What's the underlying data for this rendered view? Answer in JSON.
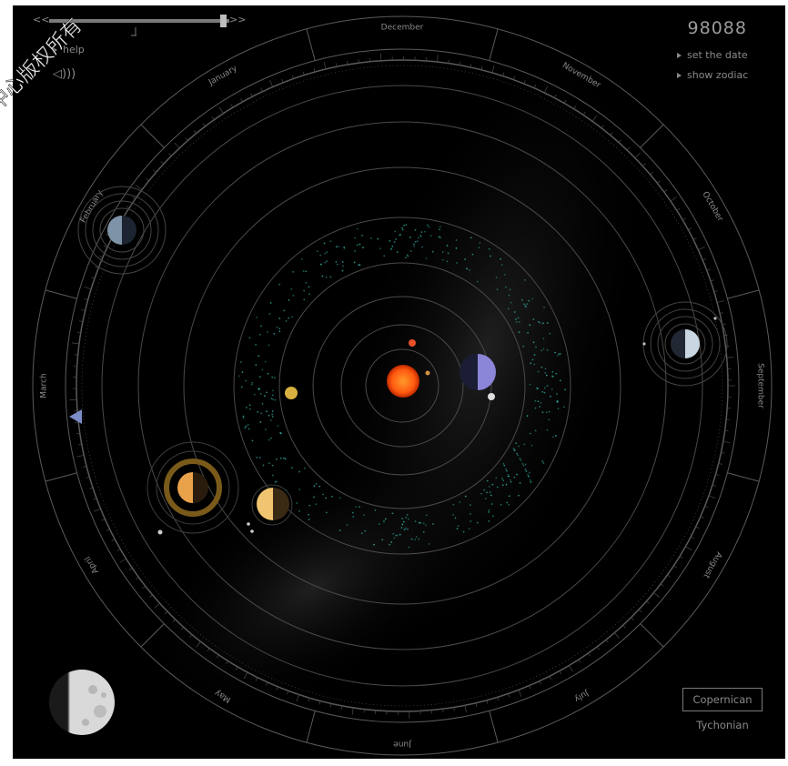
{
  "timeline": {
    "rewind_label": "<<",
    "forward_label": ">>"
  },
  "menu": {
    "help_label": "help",
    "set_date_label": "set the date",
    "show_zodiac_label": "show zodiac"
  },
  "year_display": "98088",
  "months": [
    "January",
    "February",
    "March",
    "April",
    "May",
    "June",
    "July",
    "August",
    "September",
    "October",
    "November",
    "December"
  ],
  "modes": {
    "active": "Copernican",
    "other": "Tychonian"
  },
  "watermark": "中心版权所有",
  "icons": {
    "sound": "speaker-icon",
    "moon": "moon-phase-icon",
    "marker": "triangle-marker-icon"
  },
  "colors": {
    "background": "#000000",
    "ring": "#5a5a5a",
    "text": "#8a8a8a",
    "sun": "#ff5a10"
  }
}
